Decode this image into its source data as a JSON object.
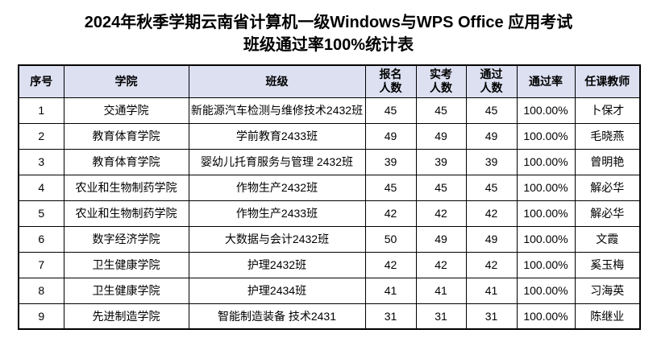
{
  "title": {
    "line1": "2024年秋季学期云南省计算机一级Windows与WPS Office 应用考试",
    "line2": "班级通过率100%统计表"
  },
  "colors": {
    "header_bg": "#DCE0F1",
    "border": "#000000",
    "text": "#000000",
    "page_bg": "#FFFFFF"
  },
  "table": {
    "columns": [
      {
        "key": "index",
        "label": "序号"
      },
      {
        "key": "college",
        "label": "学院"
      },
      {
        "key": "class",
        "label": "班级"
      },
      {
        "key": "registered",
        "label": "报名\n人数"
      },
      {
        "key": "attended",
        "label": "实考\n人数"
      },
      {
        "key": "passed",
        "label": "通过\n人数"
      },
      {
        "key": "pass_rate",
        "label": "通过率"
      },
      {
        "key": "teacher",
        "label": "任课教师"
      }
    ],
    "rows": [
      [
        "1",
        "交通学院",
        "新能源汽车检测与维修技术2432班",
        "45",
        "45",
        "45",
        "100.00%",
        "卜保才"
      ],
      [
        "2",
        "教育体育学院",
        "学前教育2433班",
        "49",
        "49",
        "49",
        "100.00%",
        "毛晓燕"
      ],
      [
        "3",
        "教育体育学院",
        "婴幼儿托育服务与管理 2432班",
        "39",
        "39",
        "39",
        "100.00%",
        "曾明艳"
      ],
      [
        "4",
        "农业和生物制药学院",
        "作物生产2432班",
        "45",
        "45",
        "45",
        "100.00%",
        "解必华"
      ],
      [
        "5",
        "农业和生物制药学院",
        "作物生产2433班",
        "42",
        "42",
        "42",
        "100.00%",
        "解必华"
      ],
      [
        "6",
        "数字经济学院",
        "大数据与会计2432班",
        "50",
        "49",
        "49",
        "100.00%",
        "文霞"
      ],
      [
        "7",
        "卫生健康学院",
        "护理2432班",
        "42",
        "42",
        "42",
        "100.00%",
        "奚玉梅"
      ],
      [
        "8",
        "卫生健康学院",
        "护理2434班",
        "41",
        "41",
        "41",
        "100.00%",
        "习海英"
      ],
      [
        "9",
        "先进制造学院",
        "智能制造装备 技术2431",
        "31",
        "31",
        "31",
        "100.00%",
        "陈继业"
      ]
    ]
  }
}
